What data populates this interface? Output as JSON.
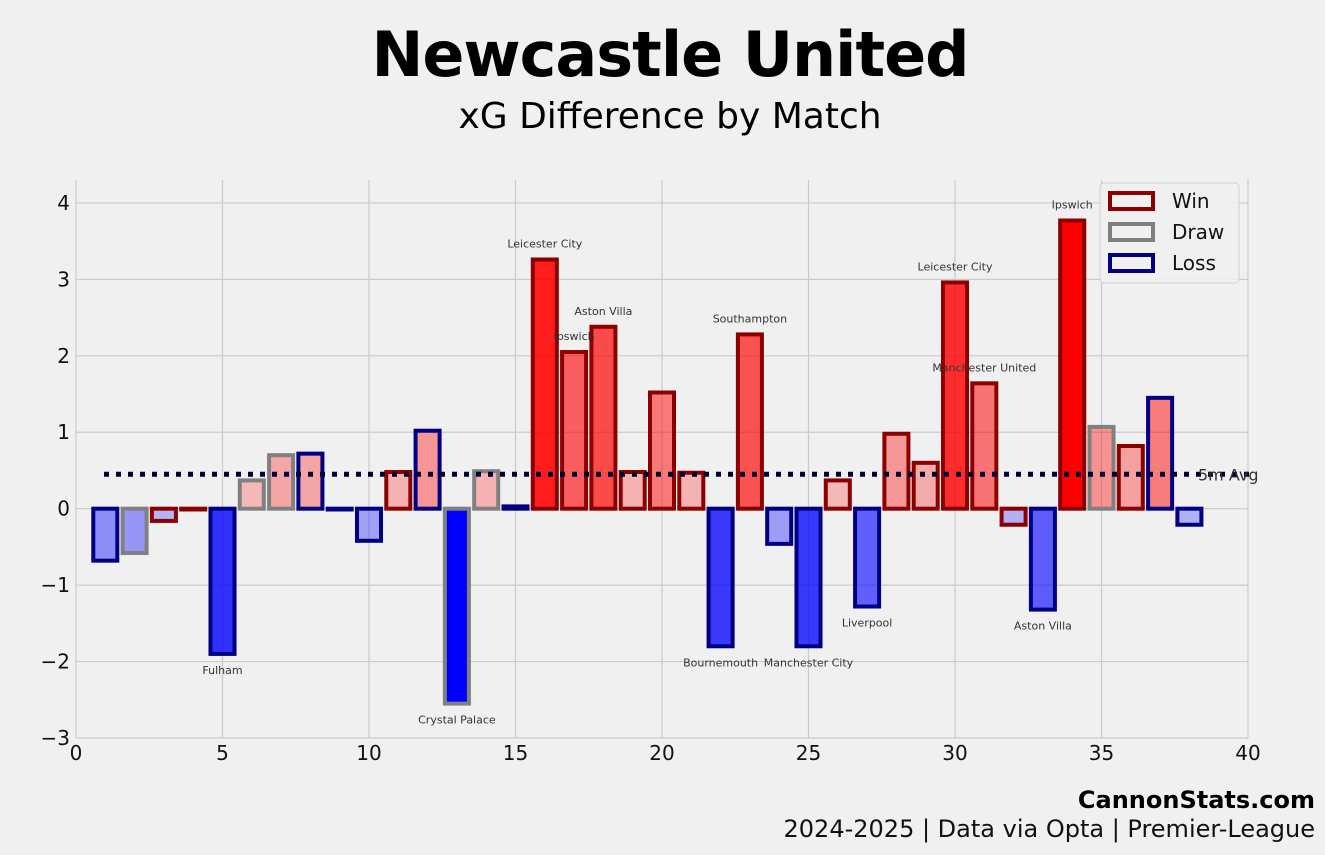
{
  "header": {
    "title": "Newcastle United",
    "subtitle": "xG Difference by Match"
  },
  "footer": {
    "brand": "CannonStats.com",
    "source": "2024-2025 | Data via Opta | Premier-League"
  },
  "colors": {
    "win_edge": "#8b0000",
    "draw_edge": "#808080",
    "loss_edge": "#000080",
    "positive_fill": "#ff0000",
    "negative_fill": "#0000ff",
    "avg_line": "#000033",
    "grid": "#cbcbcb",
    "background": "#f0f0f0"
  },
  "chart_data": {
    "type": "bar",
    "title": "Newcastle United",
    "subtitle": "xG Difference by Match",
    "xlabel": "",
    "ylabel": "",
    "xlim": [
      0,
      40
    ],
    "ylim": [
      -3,
      4.3
    ],
    "xticks": [
      0,
      5,
      10,
      15,
      20,
      25,
      30,
      35,
      40
    ],
    "yticks": [
      -3,
      -2,
      -1,
      0,
      1,
      2,
      3,
      4
    ],
    "ytick_labels": [
      "−3",
      "−2",
      "−1",
      "0",
      "1",
      "2",
      "3",
      "4"
    ],
    "grid": true,
    "legend_position": "top-right",
    "legend": [
      {
        "result": "W",
        "label": "Win"
      },
      {
        "result": "D",
        "label": "Draw"
      },
      {
        "result": "L",
        "label": "Loss"
      }
    ],
    "reference_line": {
      "label": "5m Avg",
      "value": 0.45,
      "style": "dotted"
    },
    "matches": [
      {
        "match": 1,
        "xg_diff": -0.68,
        "result": "L"
      },
      {
        "match": 2,
        "xg_diff": -0.58,
        "result": "D"
      },
      {
        "match": 3,
        "xg_diff": -0.16,
        "result": "W"
      },
      {
        "match": 4,
        "xg_diff": 0.0,
        "result": "W"
      },
      {
        "match": 5,
        "xg_diff": -1.9,
        "result": "L",
        "opponent": "Fulham"
      },
      {
        "match": 6,
        "xg_diff": 0.37,
        "result": "D"
      },
      {
        "match": 7,
        "xg_diff": 0.7,
        "result": "D"
      },
      {
        "match": 8,
        "xg_diff": 0.72,
        "result": "L"
      },
      {
        "match": 9,
        "xg_diff": 0.0,
        "result": "L"
      },
      {
        "match": 10,
        "xg_diff": -0.42,
        "result": "L"
      },
      {
        "match": 11,
        "xg_diff": 0.48,
        "result": "W"
      },
      {
        "match": 12,
        "xg_diff": 1.02,
        "result": "L"
      },
      {
        "match": 13,
        "xg_diff": -2.55,
        "result": "D",
        "opponent": "Crystal Palace"
      },
      {
        "match": 14,
        "xg_diff": 0.49,
        "result": "D"
      },
      {
        "match": 15,
        "xg_diff": 0.03,
        "result": "L"
      },
      {
        "match": 16,
        "xg_diff": 3.26,
        "result": "W",
        "opponent": "Leicester City"
      },
      {
        "match": 17,
        "xg_diff": 2.05,
        "result": "W",
        "opponent": "Ipswich"
      },
      {
        "match": 18,
        "xg_diff": 2.38,
        "result": "W",
        "opponent": "Aston Villa"
      },
      {
        "match": 19,
        "xg_diff": 0.48,
        "result": "W"
      },
      {
        "match": 20,
        "xg_diff": 1.52,
        "result": "W"
      },
      {
        "match": 21,
        "xg_diff": 0.47,
        "result": "W"
      },
      {
        "match": 22,
        "xg_diff": -1.8,
        "result": "L",
        "opponent": "Bournemouth"
      },
      {
        "match": 23,
        "xg_diff": 2.28,
        "result": "W",
        "opponent": "Southampton"
      },
      {
        "match": 24,
        "xg_diff": -0.46,
        "result": "L"
      },
      {
        "match": 25,
        "xg_diff": -1.8,
        "result": "L",
        "opponent": "Manchester City"
      },
      {
        "match": 26,
        "xg_diff": 0.37,
        "result": "W"
      },
      {
        "match": 27,
        "xg_diff": -1.28,
        "result": "L",
        "opponent": "Liverpool"
      },
      {
        "match": 28,
        "xg_diff": 0.98,
        "result": "W"
      },
      {
        "match": 29,
        "xg_diff": 0.6,
        "result": "W"
      },
      {
        "match": 30,
        "xg_diff": 2.96,
        "result": "W",
        "opponent": "Leicester City"
      },
      {
        "match": 31,
        "xg_diff": 1.64,
        "result": "W",
        "opponent": "Manchester United"
      },
      {
        "match": 32,
        "xg_diff": -0.21,
        "result": "W"
      },
      {
        "match": 33,
        "xg_diff": -1.32,
        "result": "L",
        "opponent": "Aston Villa"
      },
      {
        "match": 34,
        "xg_diff": 3.77,
        "result": "W",
        "opponent": "Ipswich"
      },
      {
        "match": 35,
        "xg_diff": 1.07,
        "result": "D"
      },
      {
        "match": 36,
        "xg_diff": 0.82,
        "result": "W"
      },
      {
        "match": 37,
        "xg_diff": 1.45,
        "result": "L"
      },
      {
        "match": 38,
        "xg_diff": -0.21,
        "result": "L"
      }
    ]
  }
}
